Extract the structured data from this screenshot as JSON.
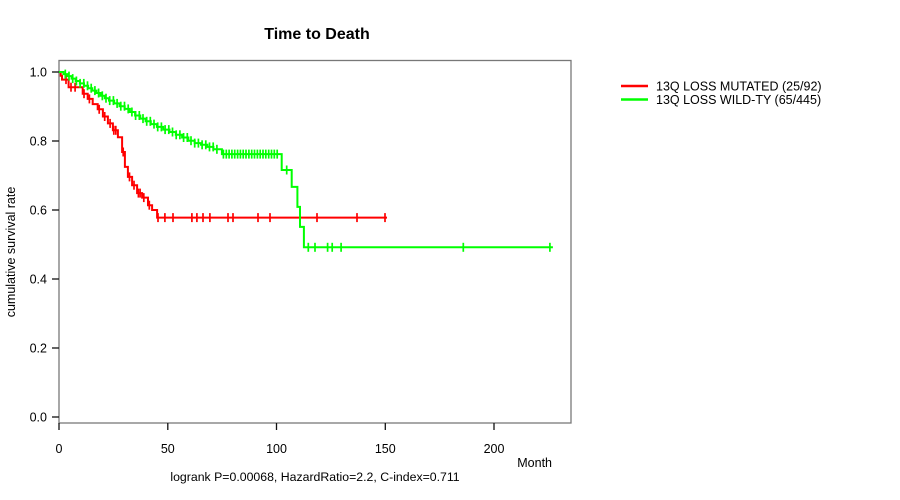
{
  "title": "Time to Death",
  "annotation": "logrank P=0.00068, HazardRatio=2.2, C-index=0.711",
  "x_axis_label": "Month",
  "y_axis_label": "cumulative survival rate",
  "legend": {
    "items": [
      {
        "label": "13Q LOSS MUTATED (25/92)",
        "color": "#ff0000"
      },
      {
        "label": "13Q LOSS WILD-TY (65/445)",
        "color": "#00ff00"
      }
    ]
  },
  "colors": {
    "box": "#787878",
    "tick": "#111111",
    "mutated": "#ff0000",
    "wildtype": "#00ff00"
  },
  "chart_data": {
    "type": "line",
    "subtype": "kaplan-meier-step",
    "title": "Time to Death",
    "xlabel": "Month",
    "ylabel": "cumulative survival rate",
    "annotation": "logrank P=0.00068, HazardRatio=2.2, C-index=0.711",
    "xlim": [
      0,
      235
    ],
    "ylim": [
      0,
      1.03
    ],
    "x_ticks": [
      0,
      50,
      100,
      150,
      200
    ],
    "y_ticks": [
      0.0,
      0.2,
      0.4,
      0.6,
      0.8,
      1.0
    ],
    "grid": false,
    "legend_position": "right-outside",
    "series": [
      {
        "name": "13Q LOSS MUTATED (25/92)",
        "color": "#ff0000",
        "end_month": 150.8,
        "steps": [
          [
            0,
            1
          ],
          [
            0.8,
            0.989
          ],
          [
            1.4,
            0.978
          ],
          [
            4.4,
            0.956
          ],
          [
            10.9,
            0.937
          ],
          [
            13.2,
            0.922
          ],
          [
            15.5,
            0.907
          ],
          [
            17.8,
            0.892
          ],
          [
            20.2,
            0.871
          ],
          [
            22.5,
            0.851
          ],
          [
            24.8,
            0.831
          ],
          [
            27.1,
            0.811
          ],
          [
            29,
            0.768
          ],
          [
            30.3,
            0.725
          ],
          [
            31.7,
            0.696
          ],
          [
            33.6,
            0.672
          ],
          [
            35.9,
            0.649
          ],
          [
            38.2,
            0.636
          ],
          [
            40.9,
            0.614
          ],
          [
            42.8,
            0.6
          ],
          [
            45.1,
            0.578
          ]
        ],
        "censor_ticks": [
          3.2,
          5.5,
          7.4,
          11.5,
          14,
          18.5,
          21,
          23.5,
          25.2,
          26.1,
          29.5,
          32.4,
          34.5,
          36.5,
          37.3,
          39,
          41.5,
          45.5,
          48.7,
          52.4,
          61.1,
          63.4,
          66.2,
          69.4,
          77.7,
          80,
          91.5,
          97,
          118.6,
          137,
          149.9
        ]
      },
      {
        "name": "13Q LOSS WILD-TY (65/445)",
        "color": "#00ff00",
        "end_month": 227.1,
        "steps": [
          [
            0,
            1
          ],
          [
            2,
            0.994
          ],
          [
            3.9,
            0.988
          ],
          [
            5.8,
            0.981
          ],
          [
            7.7,
            0.974
          ],
          [
            9.6,
            0.967
          ],
          [
            11.5,
            0.96
          ],
          [
            13.4,
            0.953
          ],
          [
            15.3,
            0.946
          ],
          [
            17.2,
            0.939
          ],
          [
            19.1,
            0.931
          ],
          [
            21,
            0.924
          ],
          [
            23,
            0.917
          ],
          [
            25.4,
            0.909
          ],
          [
            27.8,
            0.901
          ],
          [
            30.2,
            0.893
          ],
          [
            32.6,
            0.884
          ],
          [
            35,
            0.874
          ],
          [
            37.4,
            0.865
          ],
          [
            39.8,
            0.857
          ],
          [
            42.2,
            0.849
          ],
          [
            45,
            0.841
          ],
          [
            47.9,
            0.833
          ],
          [
            50.8,
            0.826
          ],
          [
            53.7,
            0.818
          ],
          [
            56.6,
            0.81
          ],
          [
            59.5,
            0.801
          ],
          [
            62.4,
            0.794
          ],
          [
            65.3,
            0.789
          ],
          [
            68.2,
            0.783
          ],
          [
            71,
            0.776
          ],
          [
            74.9,
            0.762
          ],
          [
            102.4,
            0.716
          ],
          [
            107,
            0.667
          ],
          [
            109.6,
            0.609
          ],
          [
            110.8,
            0.551
          ],
          [
            112.6,
            0.492
          ]
        ],
        "censor_ticks": [
          2.9,
          4.6,
          6.3,
          8,
          9.7,
          11.4,
          13.1,
          14.8,
          16.5,
          18.2,
          19.9,
          21.6,
          23.3,
          25,
          26.7,
          28.4,
          30.1,
          31.8,
          33.5,
          35.2,
          36.9,
          38.6,
          40.3,
          42,
          43.7,
          45.4,
          47.1,
          48.8,
          50.5,
          52.2,
          53.9,
          55.6,
          57.3,
          59,
          60.7,
          62.4,
          64.1,
          65.8,
          67.5,
          69.2,
          70.9,
          72.6,
          75.6,
          76.9,
          78.2,
          79.5,
          80.8,
          82.1,
          83.4,
          84.7,
          86,
          87.3,
          88.6,
          89.9,
          91.2,
          92.5,
          93.8,
          95.1,
          96.4,
          97.7,
          99,
          100.3,
          104.7,
          114.6,
          117.7,
          123.5,
          125.6,
          129.7,
          185.9,
          225.7
        ]
      }
    ]
  }
}
